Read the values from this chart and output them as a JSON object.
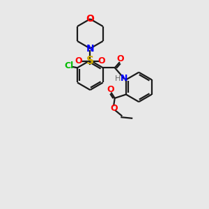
{
  "bg_color": "#e8e8e8",
  "bond_color": "#1a1a1a",
  "atom_colors": {
    "O": "#ff0000",
    "N": "#0000ff",
    "S": "#ccaa00",
    "Cl": "#00bb00",
    "H": "#666666",
    "C": "#1a1a1a"
  },
  "fig_size": [
    3.0,
    3.0
  ],
  "dpi": 100,
  "xlim": [
    0,
    10
  ],
  "ylim": [
    0,
    10
  ],
  "font_size": 9,
  "linewidth": 1.6
}
